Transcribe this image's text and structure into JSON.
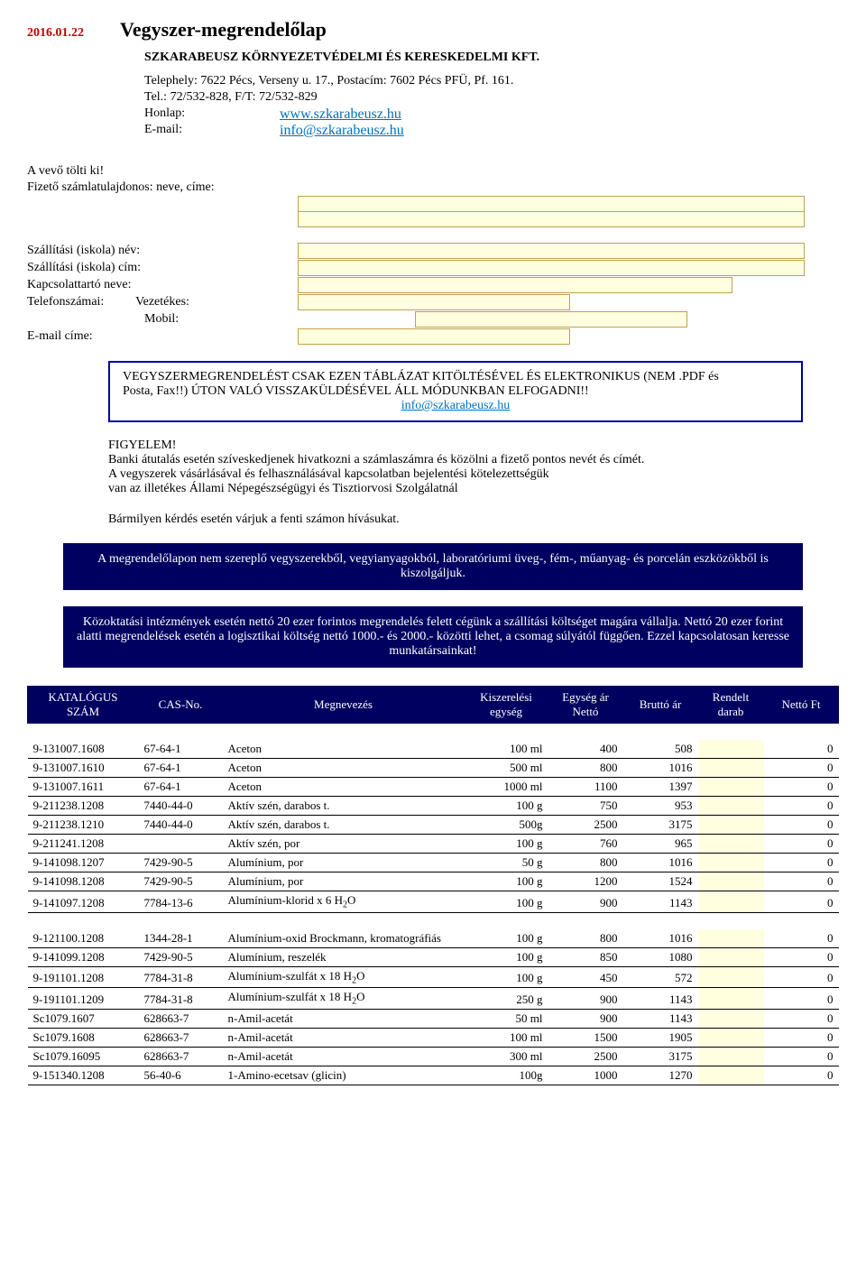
{
  "header": {
    "date": "2016.01.22",
    "title": "Vegyszer-megrendelőlap",
    "company": "SZKARABEUSZ KÖRNYEZETVÉDELMI ÉS KERESKEDELMI KFT.",
    "site_line": "Telephely: 7622 Pécs, Verseny u. 17., Postacím: 7602 Pécs PFÜ, Pf. 161.",
    "tel_line": "Tel.: 72/532-828, F/T: 72/532-829",
    "honlap_label": "Honlap:",
    "honlap_link": "www.szkarabeusz.hu",
    "email_label": "E-mail:",
    "email_link": "info@szkarabeusz.hu"
  },
  "form": {
    "vevo": "A vevő tölti ki!",
    "fizeto": "Fizető számlatulajdonos: neve, címe:",
    "szall_nev": "Szállítási (iskola) név:",
    "szall_cim": "Szállítási (iskola) cím:",
    "kapcs": "Kapcsolattartó neve:",
    "tel": "Telefonszámai:",
    "vezetekes": "Vezetékes:",
    "mobil": "Mobil:",
    "emailcim": "E-mail címe:"
  },
  "notice1": {
    "line1": "VEGYSZERMEGRENDELÉST CSAK EZEN TÁBLÁZAT KITÖLTÉSÉVEL ÉS ELEKTRONIKUS (NEM .PDF és",
    "line2": "Posta, Fax!!) ÚTON VALÓ VISSZAKÜLDÉSÉVEL ÁLL MÓDUNKBAN ELFOGADNI!!",
    "link": "info@szkarabeusz.hu"
  },
  "figyelem": {
    "title": "FIGYELEM!",
    "p1": "Banki átutalás esetén szíveskedjenek hivatkozni a számlaszámra és közölni a fizető pontos nevét és címét.",
    "p2": "A vegyszerek vásárlásával és felhasználásával kapcsolatban bejelentési kötelezettségük",
    "p3": "van az illetékes Állami Népegészségügyi és Tisztiorvosi Szolgálatnál",
    "p4": "Bármilyen kérdés esetén várjuk a fenti számon hívásukat."
  },
  "darkbox1": "A megrendelőlapon nem szereplő vegyszerekből, vegyianyagokból, laboratóriumi üveg-, fém-, műanyag- és porcelán eszközökből is kiszolgáljuk.",
  "darkbox2": "Közoktatási intézmények esetén nettó 20 ezer forintos megrendelés felett cégünk a szállítási költséget magára vállalja. Nettó 20 ezer forint alatti megrendelések esetén a logisztikai költség nettó 1000.- és 2000.- közötti lehet, a csomag súlyától függően. Ezzel kapcsolatosan keresse munkatársainkat!",
  "table": {
    "columns": [
      "KATALÓGUS SZÁM",
      "CAS-No.",
      "Megnevezés",
      "Kiszerelési egység",
      "Egység ár Nettó",
      "Bruttó ár",
      "Rendelt darab",
      "Nettó Ft"
    ],
    "col_widths": [
      "110px",
      "80px",
      "auto",
      "80px",
      "70px",
      "70px",
      "60px",
      "70px"
    ],
    "rows": [
      [
        "9-131007.1608",
        "67-64-1",
        "Aceton",
        "100 ml",
        "400",
        "508",
        "",
        "0"
      ],
      [
        "9-131007.1610",
        "67-64-1",
        "Aceton",
        "500 ml",
        "800",
        "1016",
        "",
        "0"
      ],
      [
        "9-131007.1611",
        "67-64-1",
        "Aceton",
        "1000 ml",
        "1100",
        "1397",
        "",
        "0"
      ],
      [
        "9-211238.1208",
        "7440-44-0",
        "Aktív szén, darabos t.",
        "100 g",
        "750",
        "953",
        "",
        "0"
      ],
      [
        "9-211238.1210",
        "7440-44-0",
        "Aktív szén, darabos t.",
        "500g",
        "2500",
        "3175",
        "",
        "0"
      ],
      [
        "9-211241.1208",
        "",
        "Aktív szén, por",
        "100 g",
        "760",
        "965",
        "",
        "0"
      ],
      [
        "9-141098.1207",
        "7429-90-5",
        "Alumínium, por",
        "50 g",
        "800",
        "1016",
        "",
        "0"
      ],
      [
        "9-141098.1208",
        "7429-90-5",
        "Alumínium, por",
        "100 g",
        "1200",
        "1524",
        "",
        "0"
      ],
      [
        "9-141097.1208",
        "7784-13-6",
        "Alumínium-klorid x 6 H₂O",
        "100 g",
        "900",
        "1143",
        "",
        "0"
      ]
    ],
    "rows2": [
      [
        "9-121100.1208",
        "1344-28-1",
        "Alumínium-oxid Brockmann, kromatográfiás",
        "100 g",
        "800",
        "1016",
        "",
        "0"
      ],
      [
        "9-141099.1208",
        "7429-90-5",
        "Alumínium, reszelék",
        "100 g",
        "850",
        "1080",
        "",
        "0"
      ],
      [
        "9-191101.1208",
        "7784-31-8",
        "Alumínium-szulfát x 18 H₂O",
        "100 g",
        "450",
        "572",
        "",
        "0"
      ],
      [
        "9-191101.1209",
        "7784-31-8",
        "Alumínium-szulfát x 18 H₂O",
        "250 g",
        "900",
        "1143",
        "",
        "0"
      ],
      [
        "Sc1079.1607",
        "628663-7",
        "n-Amil-acetát",
        "50 ml",
        "900",
        "1143",
        "",
        "0"
      ],
      [
        "Sc1079.1608",
        "628663-7",
        "n-Amil-acetát",
        "100 ml",
        "1500",
        "1905",
        "",
        "0"
      ],
      [
        "Sc1079.16095",
        "628663-7",
        "n-Amil-acetát",
        "300 ml",
        "2500",
        "3175",
        "",
        "0"
      ],
      [
        "9-151340.1208",
        "56-40-6",
        "1-Amino-ecetsav (glicin)",
        "100g",
        "1000",
        "1270",
        "",
        "0"
      ]
    ]
  },
  "colors": {
    "red": "#c00000",
    "navy": "#000060",
    "link_blue": "#0070c0",
    "yellow": "#ffffe0"
  }
}
